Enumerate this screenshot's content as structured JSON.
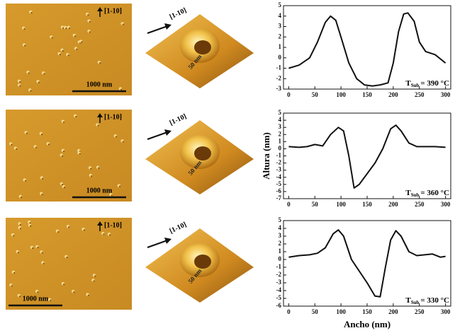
{
  "images": [
    {
      "direction": "[1-10]",
      "scale": "1000 nm",
      "inset_direction": "[1-10]",
      "inset_scale": "50 nm"
    },
    {
      "direction": "[1-10]",
      "scale": "1000 nm",
      "inset_direction": "[1-10]",
      "inset_scale": "50 nm"
    },
    {
      "direction": "[1-10]",
      "scale": "1000 nm",
      "inset_direction": "[1-10]",
      "inset_scale": "50 nm"
    }
  ],
  "chart_data": [
    {
      "type": "line",
      "annotation": {
        "base": "T",
        "subscript": "Sub",
        "text": "= 390 °C"
      },
      "x": [
        0,
        20,
        40,
        55,
        70,
        80,
        90,
        100,
        115,
        130,
        145,
        160,
        175,
        190,
        200,
        210,
        220,
        228,
        240,
        250,
        262,
        280,
        300
      ],
      "series": [
        {
          "color": "#111111",
          "values": [
            -1,
            -0.7,
            0,
            1.5,
            3.4,
            4,
            3.6,
            2,
            -0.5,
            -2,
            -2.6,
            -2.7,
            -2.6,
            -2.4,
            -0.5,
            2.5,
            4.2,
            4.3,
            3.5,
            1.5,
            0.6,
            0.3,
            -0.5
          ]
        }
      ],
      "xlim": [
        -10,
        310
      ],
      "xticks": [
        0,
        50,
        100,
        150,
        200,
        250,
        300
      ],
      "ylim": [
        -3,
        5
      ],
      "yticks": [
        -3,
        -2,
        -1,
        0,
        1,
        2,
        3,
        4,
        5
      ]
    },
    {
      "type": "line",
      "y_label": "Altura (nm)",
      "annotation": {
        "base": "T",
        "subscript": "Sub",
        "text": "= 360 °C"
      },
      "x": [
        0,
        20,
        35,
        50,
        65,
        80,
        95,
        105,
        115,
        125,
        135,
        150,
        165,
        180,
        195,
        205,
        215,
        230,
        245,
        260,
        280,
        300
      ],
      "series": [
        {
          "color": "#111111",
          "values": [
            0.3,
            0.2,
            0.3,
            0.6,
            0.4,
            2,
            3,
            2.5,
            -1,
            -5.5,
            -5,
            -3.5,
            -2,
            0,
            2.8,
            3.3,
            2.5,
            0.8,
            0.3,
            0.3,
            0.3,
            0.2
          ]
        }
      ],
      "xlim": [
        -10,
        310
      ],
      "xticks": [
        0,
        50,
        100,
        150,
        200,
        250,
        300
      ],
      "ylim": [
        -7,
        5
      ],
      "yticks": [
        -7,
        -6,
        -5,
        -4,
        -3,
        -2,
        -1,
        0,
        1,
        2,
        3,
        4,
        5
      ]
    },
    {
      "type": "line",
      "x_label": "Ancho (nm)",
      "annotation": {
        "base": "T",
        "subscript": "Sub",
        "text": "= 330 °C"
      },
      "x": [
        0,
        20,
        40,
        55,
        70,
        85,
        95,
        105,
        120,
        135,
        150,
        165,
        175,
        185,
        195,
        205,
        215,
        230,
        245,
        260,
        275,
        290,
        300
      ],
      "series": [
        {
          "color": "#111111",
          "values": [
            0.3,
            0.5,
            0.6,
            0.8,
            1.5,
            3.3,
            3.8,
            3,
            0,
            -1.5,
            -3,
            -4.7,
            -4.8,
            -1,
            2.5,
            3.7,
            3,
            1,
            0.5,
            0.6,
            0.7,
            0.3,
            0.4
          ]
        }
      ],
      "xlim": [
        -10,
        310
      ],
      "xticks": [
        0,
        50,
        100,
        150,
        200,
        250,
        300
      ],
      "ylim": [
        -6,
        5
      ],
      "yticks": [
        -6,
        -5,
        -4,
        -3,
        -2,
        -1,
        0,
        1,
        2,
        3,
        4,
        5
      ]
    }
  ]
}
